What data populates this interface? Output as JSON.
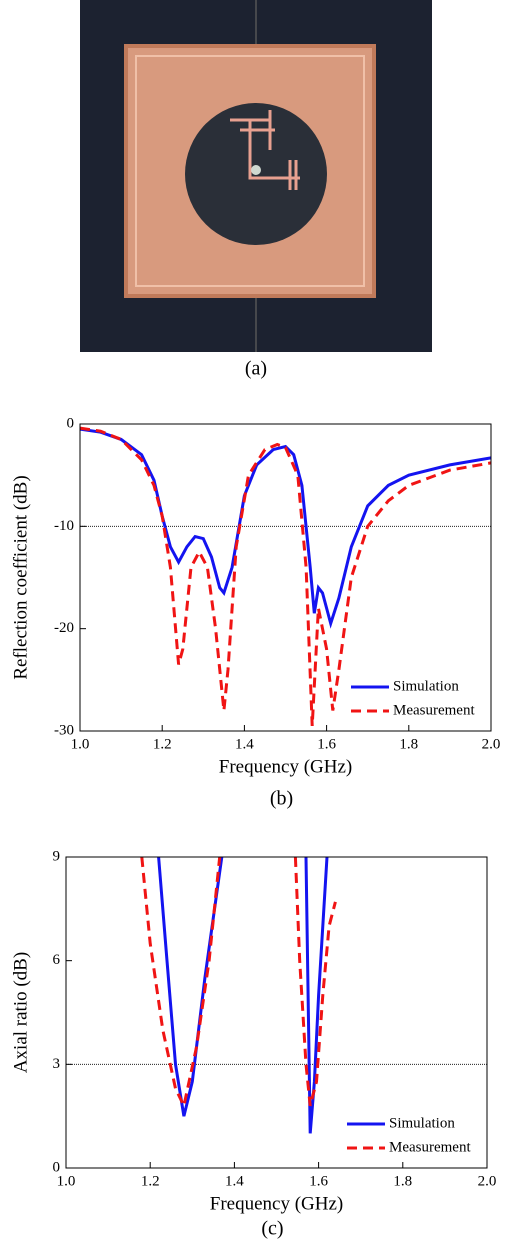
{
  "figure_caption": "(a)",
  "chart_data": [
    {
      "type": "line",
      "caption": "(b)",
      "xlabel": "Frequency (GHz)",
      "ylabel": "Reflection coefficient (dB)",
      "xlim": [
        1.0,
        2.0
      ],
      "xticks": [
        {
          "value": 1.0,
          "label": "1.0"
        },
        1.2,
        1.4,
        1.6,
        1.8,
        {
          "value": 2.0,
          "label": "2.0"
        }
      ],
      "ylim": [
        -30,
        0
      ],
      "yticks": [
        -30,
        -20,
        -10,
        0
      ],
      "hline": -10,
      "legend": "bottom-right",
      "series": [
        {
          "name": "Simulation",
          "color": "#1414f0",
          "dashed": false,
          "x": [
            1.0,
            1.05,
            1.1,
            1.15,
            1.18,
            1.2,
            1.22,
            1.24,
            1.26,
            1.28,
            1.3,
            1.32,
            1.34,
            1.35,
            1.37,
            1.4,
            1.43,
            1.47,
            1.5,
            1.52,
            1.54,
            1.56,
            1.57,
            1.58,
            1.59,
            1.61,
            1.63,
            1.66,
            1.7,
            1.75,
            1.8,
            1.9,
            2.0
          ],
          "values": [
            -0.5,
            -0.8,
            -1.5,
            -3,
            -5.5,
            -9,
            -12,
            -13.5,
            -12,
            -11,
            -11.2,
            -13,
            -16,
            -16.5,
            -14,
            -7,
            -4,
            -2.5,
            -2.2,
            -3,
            -6,
            -14,
            -18.5,
            -16,
            -16.5,
            -19.5,
            -17,
            -12,
            -8,
            -6,
            -5,
            -4,
            -3.3
          ]
        },
        {
          "name": "Measurement",
          "color": "#f01414",
          "dashed": true,
          "x": [
            1.0,
            1.05,
            1.1,
            1.15,
            1.18,
            1.2,
            1.22,
            1.24,
            1.25,
            1.27,
            1.29,
            1.31,
            1.33,
            1.35,
            1.36,
            1.38,
            1.41,
            1.45,
            1.48,
            1.5,
            1.53,
            1.55,
            1.565,
            1.58,
            1.6,
            1.615,
            1.63,
            1.66,
            1.7,
            1.75,
            1.8,
            1.9,
            2.0
          ],
          "values": [
            -0.4,
            -0.7,
            -1.5,
            -3.5,
            -6,
            -9,
            -14,
            -23.5,
            -22,
            -14,
            -12.5,
            -14,
            -20,
            -28,
            -24,
            -12,
            -5,
            -2.5,
            -2,
            -2.3,
            -5,
            -14,
            -29.5,
            -18,
            -22,
            -28,
            -24,
            -15,
            -10,
            -7.5,
            -6,
            -4.5,
            -3.8
          ]
        }
      ]
    },
    {
      "type": "line",
      "caption": "(c)",
      "xlabel": "Frequency (GHz)",
      "ylabel": "Axial ratio (dB)",
      "xlim": [
        1.0,
        2.0
      ],
      "xticks": [
        {
          "value": 1.0,
          "label": "1.0"
        },
        1.2,
        1.4,
        1.6,
        1.8,
        {
          "value": 2.0,
          "label": "2.0"
        }
      ],
      "ylim": [
        0,
        9
      ],
      "yticks": [
        0,
        3,
        6,
        9
      ],
      "hline": 3,
      "legend": "bottom-right",
      "series": [
        {
          "name": "Simulation",
          "color": "#1414f0",
          "dashed": false,
          "x": [
            1.22,
            1.24,
            1.26,
            1.28,
            1.3,
            1.33,
            1.37,
            null,
            1.57,
            1.575,
            1.58,
            1.59,
            1.6,
            1.62
          ],
          "values": [
            9,
            6,
            3,
            1.5,
            2.5,
            5.5,
            9,
            null,
            9,
            5,
            1,
            2.5,
            5,
            9
          ]
        },
        {
          "name": "Measurement",
          "color": "#f01414",
          "dashed": true,
          "x": [
            1.18,
            1.2,
            1.23,
            1.26,
            1.28,
            1.31,
            1.34,
            1.365,
            null,
            1.545,
            1.555,
            1.57,
            1.58,
            1.595,
            1.61,
            1.625,
            1.64
          ],
          "values": [
            9,
            6.5,
            4,
            2.3,
            1.8,
            3.5,
            6,
            9,
            null,
            9,
            6,
            3,
            1.8,
            2.5,
            5,
            7,
            7.7
          ]
        }
      ]
    }
  ]
}
